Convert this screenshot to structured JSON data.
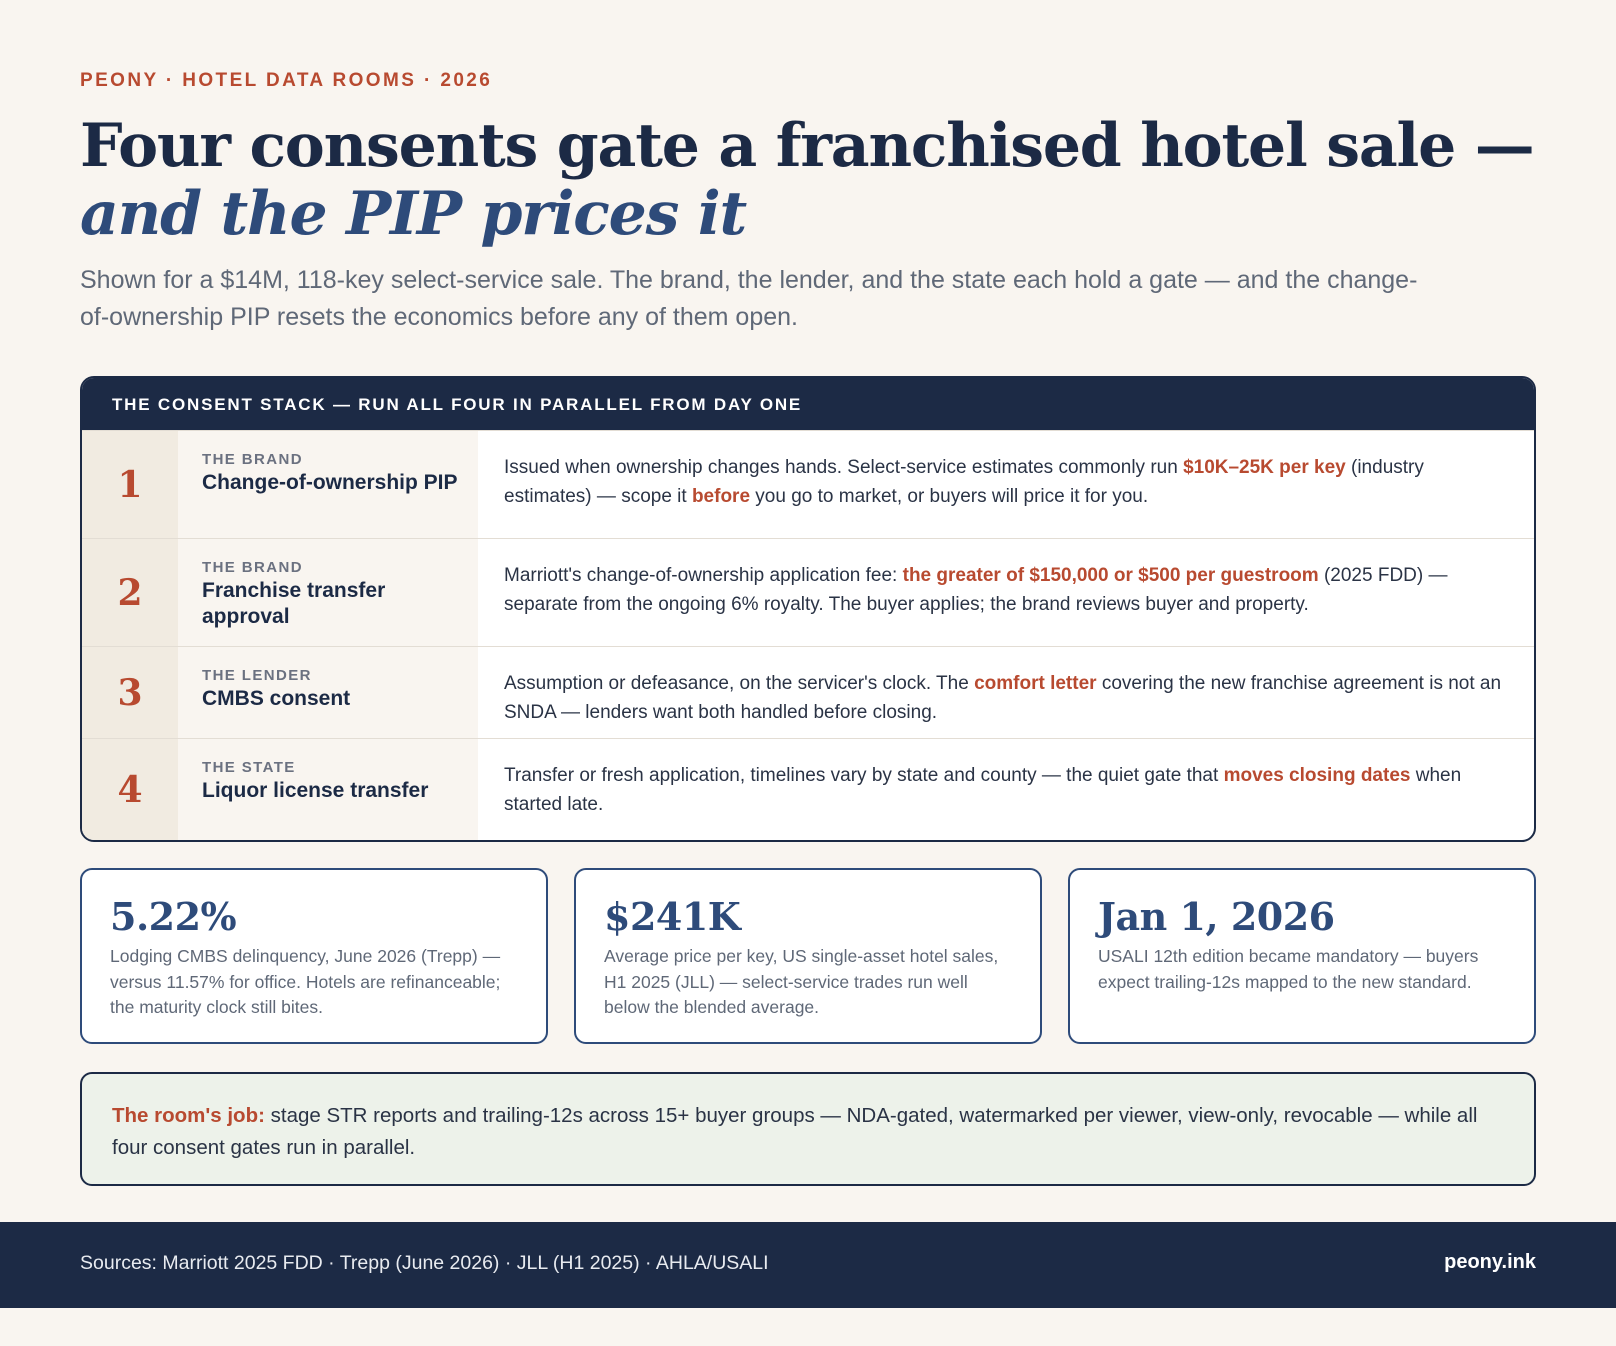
{
  "eyebrow": "PEONY · HOTEL DATA ROOMS · 2026",
  "headline": {
    "line1": "Four consents gate a franchised hotel sale —",
    "line2": "and the PIP prices it"
  },
  "subhead": "Shown for a $14M, 118-key select-service sale. The brand, the lender, and the state each hold a gate — and the change-of-ownership PIP resets the economics before any of them open.",
  "stack": {
    "header": "THE CONSENT STACK — RUN ALL FOUR IN PARALLEL FROM DAY ONE",
    "rows": [
      {
        "number": "1",
        "owner": "THE BRAND",
        "title": "Change-of-ownership PIP",
        "desc": [
          {
            "t": "Issued when ownership changes hands. Select-service estimates commonly run "
          },
          {
            "t": "$10K–25K per key",
            "hl": true
          },
          {
            "t": " (industry estimates) — scope it "
          },
          {
            "t": "before",
            "hl": true
          },
          {
            "t": " you go to market, or buyers will price it for you."
          }
        ]
      },
      {
        "number": "2",
        "owner": "THE BRAND",
        "title": "Franchise transfer approval",
        "desc": [
          {
            "t": "Marriott's change-of-ownership application fee: "
          },
          {
            "t": "the greater of $150,000 or $500 per guestroom",
            "hl": true
          },
          {
            "t": " (2025 FDD) — separate from the ongoing 6% royalty. The buyer applies; the brand reviews buyer and property."
          }
        ]
      },
      {
        "number": "3",
        "owner": "THE LENDER",
        "title": "CMBS consent",
        "desc": [
          {
            "t": "Assumption or defeasance, on the servicer's clock. The "
          },
          {
            "t": "comfort letter",
            "hl": true
          },
          {
            "t": " covering the new franchise agreement is not an SNDA — lenders want both handled before closing."
          }
        ]
      },
      {
        "number": "4",
        "owner": "THE STATE",
        "title": "Liquor license transfer",
        "desc": [
          {
            "t": "Transfer or fresh application, timelines vary by state and county — the quiet gate that "
          },
          {
            "t": "moves closing dates",
            "hl": true
          },
          {
            "t": " when started late."
          }
        ]
      }
    ]
  },
  "stats": [
    {
      "value": "5.22%",
      "text": "Lodging CMBS delinquency, June 2026 (Trepp) — versus 11.57% for office. Hotels are refinanceable; the maturity clock still bites."
    },
    {
      "value": "$241K",
      "text": "Average price per key, US single-asset hotel sales, H1 2025 (JLL) — select-service trades run well below the blended average."
    },
    {
      "value": "Jan 1, 2026",
      "text": "USALI 12th edition became mandatory — buyers expect trailing-12s mapped to the new standard."
    }
  ],
  "callout": {
    "lead": "The room's job:",
    "text": " stage STR reports and trailing-12s across 15+ buyer groups — NDA-gated, watermarked per viewer, view-only, revocable — while all four consent gates run in parallel."
  },
  "footer": {
    "sources": "Sources: Marriott 2025 FDD · Trepp (June 2026) · JLL (H1 2025) · AHLA/USALI",
    "site": "peony.ink"
  },
  "colors": {
    "navy": "#1c2a45",
    "accent_blue": "#2e4b7a",
    "accent_red": "#b84a30",
    "background": "#f9f5f0",
    "callout_bg": "#edf2ea"
  }
}
